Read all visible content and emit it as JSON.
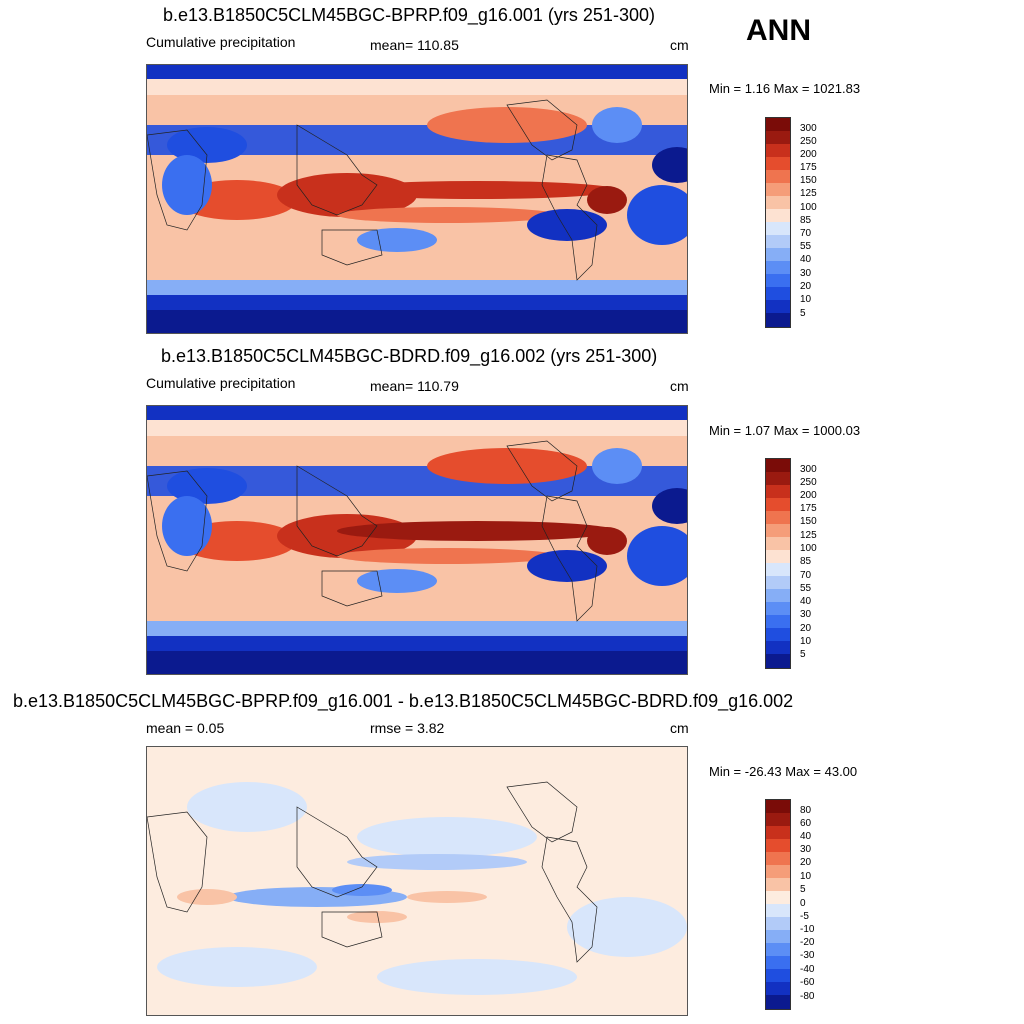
{
  "season": "ANN",
  "colors": {
    "precip_scale": [
      "#0b1a8f",
      "#1231c2",
      "#1f4ee0",
      "#3a6ff0",
      "#5c8ef5",
      "#86aef6",
      "#b2cbf8",
      "#d8e6fb",
      "#fde2d2",
      "#f9c3a6",
      "#f59d79",
      "#ef744f",
      "#e54d2d",
      "#c8301c",
      "#9a1a10",
      "#7a0c08"
    ],
    "diff_scale": [
      "#0b1a8f",
      "#1231c2",
      "#1f4ee0",
      "#3a6ff0",
      "#5c8ef5",
      "#86aef6",
      "#b2cbf8",
      "#d8e6fb",
      "#fdecdf",
      "#f9c3a6",
      "#f59d79",
      "#ef744f",
      "#e54d2d",
      "#c8301c",
      "#9a1a10",
      "#7a0c08"
    ]
  },
  "panels": [
    {
      "title": "b.e13.B1850C5CLM45BGC-BPRP.f09_g16.001 (yrs 251-300)",
      "left_label": "Cumulative precipitation",
      "center_label": "mean= 110.85",
      "unit": "cm",
      "minmax": "Min =   1.16 Max = 1021.83",
      "colorbar_labels": [
        "300",
        "250",
        "200",
        "175",
        "150",
        "125",
        "100",
        "85",
        "70",
        "55",
        "40",
        "30",
        "20",
        "10",
        "5"
      ]
    },
    {
      "title": "b.e13.B1850C5CLM45BGC-BDRD.f09_g16.002 (yrs 251-300)",
      "left_label": "Cumulative precipitation",
      "center_label": "mean= 110.79",
      "unit": "cm",
      "minmax": "Min =   1.07 Max = 1000.03",
      "colorbar_labels": [
        "300",
        "250",
        "200",
        "175",
        "150",
        "125",
        "100",
        "85",
        "70",
        "55",
        "40",
        "30",
        "20",
        "10",
        "5"
      ]
    },
    {
      "title": "b.e13.B1850C5CLM45BGC-BPRP.f09_g16.001 - b.e13.B1850C5CLM45BGC-BDRD.f09_g16.002",
      "left_label": "mean =   0.05",
      "center_label": "rmse =   3.82",
      "unit": "cm",
      "minmax": "Min = -26.43 Max =  43.00",
      "colorbar_labels": [
        "80",
        "60",
        "40",
        "30",
        "20",
        "10",
        "5",
        "0",
        "-5",
        "-10",
        "-20",
        "-30",
        "-40",
        "-60",
        "-80"
      ]
    }
  ]
}
